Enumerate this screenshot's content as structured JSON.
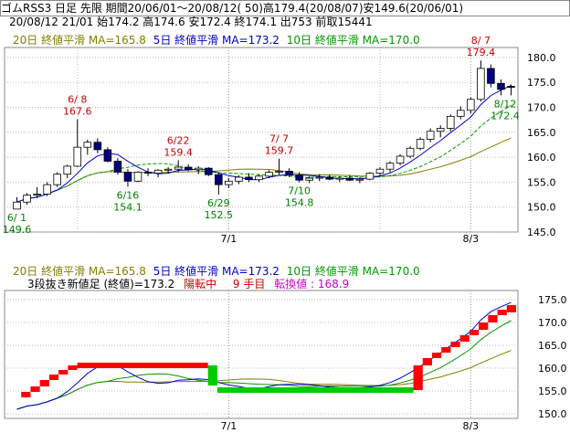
{
  "header": {
    "line1": "ゴムRSS3 日足 先限 期間20/06/01～20/08/12( 50)高179.4(20/08/07)安149.6(20/06/01)",
    "line2": "20/08/12 21/01 始174.2 高174.6 安172.4 終174.1 出753 前取15441"
  },
  "legend": {
    "ma20": "20日 終値平滑 MA=165.8",
    "ma5": "5日 終値平滑 MA=173.2",
    "ma10": "10日 終値平滑 MA=170.0"
  },
  "lower_info": {
    "label": "3段抜き新値足 (終値)=173.2",
    "status": "陽転中",
    "count": "9 手目",
    "reversal": "転換値 : 168.9"
  },
  "colors": {
    "up": "#ffffff",
    "down": "#000080",
    "ma5": "#0000cc",
    "ma10": "#009900",
    "ma20": "#808000",
    "annot_high": "#cc0000",
    "annot_low": "#008000",
    "bull_block": "#ff0000",
    "bear_block": "#0000ff",
    "green_block": "#00cc00"
  },
  "chart_data": [
    {
      "type": "candlestick",
      "x_tick_labels": [
        {
          "index": 21,
          "label": "7/1"
        },
        {
          "index": 45,
          "label": "8/3"
        }
      ],
      "y_ticks": [
        145.0,
        150.0,
        155.0,
        160.0,
        165.0,
        170.0,
        175.0,
        180.0
      ],
      "ylim": [
        145,
        182
      ],
      "ohlc": [
        [
          149.6,
          152.0,
          149.6,
          151.0
        ],
        [
          151.0,
          152.8,
          150.5,
          152.4
        ],
        [
          152.4,
          154.0,
          151.8,
          152.6
        ],
        [
          152.6,
          155.0,
          152.2,
          154.5
        ],
        [
          154.5,
          157.0,
          154.0,
          156.6
        ],
        [
          156.6,
          158.5,
          155.8,
          158.2
        ],
        [
          158.2,
          167.6,
          158.0,
          162.0
        ],
        [
          162.0,
          163.5,
          160.5,
          163.0
        ],
        [
          163.0,
          163.8,
          160.8,
          161.5
        ],
        [
          161.5,
          162.0,
          159.0,
          159.2
        ],
        [
          159.2,
          159.8,
          156.5,
          157.0
        ],
        [
          157.0,
          157.6,
          154.1,
          155.2
        ],
        [
          155.2,
          157.2,
          155.0,
          157.0
        ],
        [
          157.0,
          157.8,
          156.2,
          156.8
        ],
        [
          156.8,
          157.6,
          156.0,
          157.4
        ],
        [
          157.4,
          158.0,
          156.8,
          157.6
        ],
        [
          157.6,
          159.4,
          157.0,
          158.0
        ],
        [
          158.0,
          158.6,
          157.2,
          157.5
        ],
        [
          157.5,
          158.2,
          156.6,
          157.8
        ],
        [
          157.8,
          158.0,
          156.2,
          156.5
        ],
        [
          156.5,
          157.0,
          152.5,
          154.5
        ],
        [
          154.5,
          155.8,
          153.8,
          155.2
        ],
        [
          155.2,
          156.4,
          154.6,
          156.0
        ],
        [
          156.0,
          156.8,
          155.0,
          155.5
        ],
        [
          155.5,
          156.6,
          155.0,
          156.2
        ],
        [
          156.2,
          157.4,
          155.8,
          157.0
        ],
        [
          157.0,
          159.7,
          156.5,
          157.2
        ],
        [
          157.2,
          157.8,
          156.0,
          156.4
        ],
        [
          156.4,
          157.0,
          155.0,
          155.4
        ],
        [
          155.4,
          156.2,
          154.8,
          155.8
        ],
        [
          155.8,
          156.6,
          155.2,
          156.0
        ],
        [
          156.0,
          156.5,
          155.4,
          155.6
        ],
        [
          155.6,
          156.2,
          155.0,
          155.8
        ],
        [
          155.8,
          156.4,
          155.2,
          155.4
        ],
        [
          155.4,
          156.0,
          154.8,
          155.6
        ],
        [
          155.6,
          157.0,
          155.4,
          156.8
        ],
        [
          156.8,
          158.0,
          156.2,
          157.6
        ],
        [
          157.6,
          159.2,
          157.0,
          158.8
        ],
        [
          158.8,
          160.6,
          158.4,
          160.2
        ],
        [
          160.2,
          162.2,
          159.8,
          161.8
        ],
        [
          161.8,
          164.0,
          161.4,
          163.6
        ],
        [
          163.6,
          165.8,
          163.0,
          165.2
        ],
        [
          165.2,
          166.4,
          164.0,
          165.8
        ],
        [
          165.8,
          168.6,
          165.2,
          168.2
        ],
        [
          168.2,
          170.2,
          167.6,
          169.4
        ],
        [
          169.4,
          172.0,
          168.8,
          171.6
        ],
        [
          171.6,
          179.4,
          171.2,
          177.8
        ],
        [
          177.8,
          178.6,
          174.0,
          174.8
        ],
        [
          174.8,
          175.6,
          172.4,
          173.6
        ],
        [
          174.2,
          174.6,
          172.4,
          174.1
        ]
      ],
      "annotations": [
        {
          "kind": "high",
          "index": 6,
          "date": "6/ 8",
          "value": "167.6"
        },
        {
          "kind": "low",
          "index": 0,
          "date": "6/ 1",
          "value": "149.6"
        },
        {
          "kind": "low",
          "index": 11,
          "date": "6/16",
          "value": "154.1"
        },
        {
          "kind": "high",
          "index": 16,
          "date": "6/22",
          "value": "159.4"
        },
        {
          "kind": "low",
          "index": 20,
          "date": "6/29",
          "value": "152.5"
        },
        {
          "kind": "high",
          "index": 26,
          "date": "7/ 7",
          "value": "159.7"
        },
        {
          "kind": "low",
          "index": 28,
          "date": "7/10",
          "value": "154.8"
        },
        {
          "kind": "high",
          "index": 46,
          "date": "8/ 7",
          "value": "179.4"
        },
        {
          "kind": "low",
          "index": 49,
          "date": "8/12",
          "value": "172.4"
        }
      ]
    },
    {
      "type": "new-price-blocks",
      "x_tick_labels": [
        {
          "index": 21,
          "label": "7/1"
        },
        {
          "index": 45,
          "label": "8/3"
        }
      ],
      "y_ticks": [
        150.0,
        155.0,
        160.0,
        165.0,
        170.0,
        175.0
      ],
      "ylim": [
        149,
        177
      ],
      "blocks": [
        {
          "color": "bull",
          "from": 153.6,
          "to": 154.8,
          "start": 1,
          "end": 2
        },
        {
          "color": "bull",
          "from": 154.8,
          "to": 156.0,
          "start": 2,
          "end": 3
        },
        {
          "color": "bull",
          "from": 156.0,
          "to": 157.4,
          "start": 3,
          "end": 4
        },
        {
          "color": "bull",
          "from": 157.4,
          "to": 158.6,
          "start": 4,
          "end": 5
        },
        {
          "color": "bull",
          "from": 158.6,
          "to": 159.6,
          "start": 5,
          "end": 6
        },
        {
          "color": "bull",
          "from": 159.6,
          "to": 160.6,
          "start": 6,
          "end": 7
        },
        {
          "color": "bull",
          "from": 160.6,
          "to": 160.6,
          "start": 7,
          "end": 21
        },
        {
          "color": "green",
          "from": 160.6,
          "to": 156.2,
          "start": 21,
          "end": 22
        },
        {
          "color": "green",
          "from": 155.2,
          "to": 155.2,
          "start": 22,
          "end": 43
        },
        {
          "color": "bull",
          "from": 155.2,
          "to": 160.6,
          "start": 43,
          "end": 44
        },
        {
          "color": "bull",
          "from": 160.6,
          "to": 162.2,
          "start": 44,
          "end": 45
        },
        {
          "color": "bull",
          "from": 162.2,
          "to": 163.4,
          "start": 45,
          "end": 46
        },
        {
          "color": "bull",
          "from": 163.4,
          "to": 164.6,
          "start": 46,
          "end": 47
        },
        {
          "color": "bull",
          "from": 164.6,
          "to": 165.8,
          "start": 47,
          "end": 48
        },
        {
          "color": "bull",
          "from": 165.8,
          "to": 167.2,
          "start": 48,
          "end": 49
        },
        {
          "color": "bull",
          "from": 167.2,
          "to": 168.4,
          "start": 49,
          "end": 50
        },
        {
          "color": "bull",
          "from": 168.4,
          "to": 170.0,
          "start": 50,
          "end": 51
        },
        {
          "color": "bull",
          "from": 170.0,
          "to": 171.6,
          "start": 51,
          "end": 52
        },
        {
          "color": "bull",
          "from": 171.6,
          "to": 172.8,
          "start": 52,
          "end": 53
        },
        {
          "color": "bull",
          "from": 172.8,
          "to": 173.2,
          "start": 53,
          "end": 54
        }
      ]
    }
  ]
}
